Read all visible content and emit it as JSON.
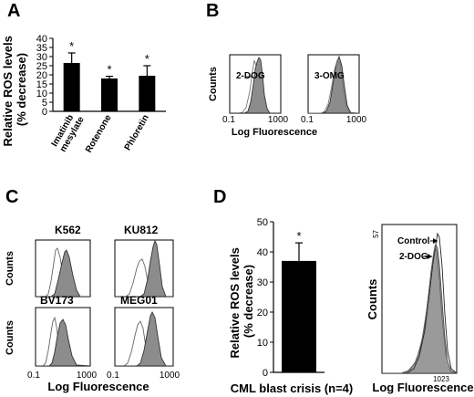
{
  "panels": {
    "A": "A",
    "B": "B",
    "C": "C",
    "D": "D"
  },
  "panelB": {
    "ylabel": "Counts",
    "xlabel": "Log Fluorescence",
    "plots": [
      {
        "label": "2-DOG",
        "xmin": "0.1",
        "xmax": "1000"
      },
      {
        "label": "3-OMG",
        "xmin": "0.1",
        "xmax": "1000"
      }
    ]
  },
  "panelC": {
    "ylabel": "Counts",
    "xlabel": "Log Fluorescence",
    "xmin": "0.1",
    "xmax": "1000",
    "cells": [
      "K562",
      "KU812",
      "BV173",
      "MEG01"
    ]
  },
  "panelD": {
    "hist": {
      "ylabel": "Counts",
      "xlabel": "Log Fluorescence",
      "ymax_label": "57",
      "xmax_label": "1023",
      "control_label": "Control",
      "dog_label": "2-DOG"
    }
  },
  "chart_data": [
    {
      "type": "bar",
      "panel": "A",
      "ylabel": "Relative ROS levels (% decrease)",
      "categories": [
        "Imatinib mesylate",
        "Rotenone",
        "Phloretin"
      ],
      "values": [
        26.5,
        18,
        19.5
      ],
      "errors": [
        5.5,
        1.2,
        5.5
      ],
      "significance": [
        "*",
        "*",
        "*"
      ],
      "ylim": [
        0,
        40
      ],
      "yticks": [
        0,
        5,
        10,
        15,
        20,
        25,
        30,
        35,
        40
      ],
      "bar_color": "#000000"
    },
    {
      "type": "bar",
      "panel": "D",
      "ylabel": "Relative ROS levels (% decrease)",
      "categories": [
        "CML blast crisis (n=4)"
      ],
      "values": [
        37
      ],
      "errors": [
        6
      ],
      "significance": [
        "*"
      ],
      "ylim": [
        0,
        50
      ],
      "yticks": [
        0,
        10,
        20,
        30,
        40,
        50
      ],
      "bar_color": "#000000"
    }
  ]
}
